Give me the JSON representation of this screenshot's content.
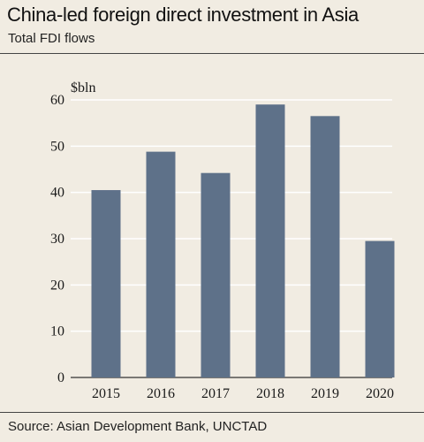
{
  "header": {
    "title": "China-led foreign direct investment in Asia",
    "subtitle": "Total FDI flows"
  },
  "footer": {
    "source": "Source: Asian Development Bank, UNCTAD"
  },
  "chart_data": {
    "type": "bar",
    "title": "China-led foreign direct investment in Asia",
    "subtitle": "Total FDI flows",
    "unit_label": "$bln",
    "categories": [
      "2015",
      "2016",
      "2017",
      "2018",
      "2019",
      "2020"
    ],
    "values": [
      40.5,
      48.8,
      44.2,
      59.0,
      56.5,
      29.5
    ],
    "ylim": [
      0,
      60
    ],
    "yticks": [
      0,
      10,
      20,
      30,
      40,
      50,
      60
    ],
    "grid": true,
    "bar_color": "#5e7189",
    "grid_color": "#ffffff"
  }
}
